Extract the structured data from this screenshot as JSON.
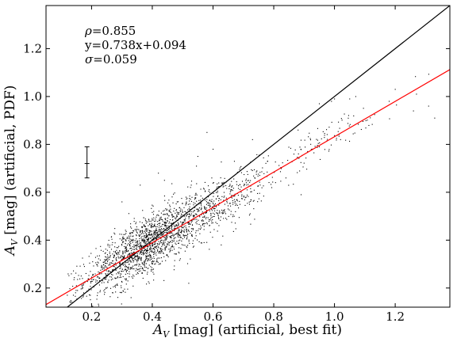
{
  "chart_data": {
    "type": "scatter",
    "title": "",
    "xlabel": "A_V [mag] (artificial, best fit)",
    "ylabel": "A_V [mag] (artificial, PDF)",
    "xlabel_parts": {
      "base": "A",
      "sub": "V",
      "rest": " [mag] (artificial, best fit)"
    },
    "ylabel_parts": {
      "base": "A",
      "sub": "V",
      "rest": " [mag] (artificial, PDF)"
    },
    "xlim": [
      0.05,
      1.38
    ],
    "ylim": [
      0.12,
      1.38
    ],
    "x_ticks": [
      0.2,
      0.4,
      0.6,
      0.8,
      1.0,
      1.2
    ],
    "y_ticks": [
      0.2,
      0.4,
      0.6,
      0.8,
      1.0,
      1.2
    ],
    "grid": false,
    "annotations": {
      "rho": {
        "symbol": "ρ",
        "text": "=0.855"
      },
      "fit": "y=0.738x+0.094",
      "sigma": {
        "symbol": "σ",
        "text": "=0.059"
      }
    },
    "lines": [
      {
        "role": "one-to-one",
        "slope": 1.0,
        "intercept": 0.0,
        "color": "#000000"
      },
      {
        "role": "linear-fit",
        "slope": 0.738,
        "intercept": 0.094,
        "color": "#ff0000"
      }
    ],
    "error_bar": {
      "x": 0.185,
      "y_low": 0.66,
      "y_high": 0.79,
      "y_center": 0.72
    },
    "scatter_clusters": [
      {
        "x_mean": 0.38,
        "x_sd": 0.1,
        "slope": 0.74,
        "intercept": 0.1,
        "y_sd": 0.06,
        "n": 1600
      },
      {
        "x_mean": 0.62,
        "x_sd": 0.08,
        "slope": 0.74,
        "intercept": 0.09,
        "y_sd": 0.06,
        "n": 400
      },
      {
        "x_mean": 0.95,
        "x_sd": 0.13,
        "slope": 0.74,
        "intercept": 0.1,
        "y_sd": 0.04,
        "n": 110
      }
    ],
    "scatter_points_extra": [
      [
        0.13,
        0.14
      ],
      [
        0.14,
        0.17
      ],
      [
        0.15,
        0.21
      ],
      [
        0.17,
        0.24
      ],
      [
        0.12,
        0.17
      ],
      [
        0.58,
        0.85
      ],
      [
        0.6,
        0.78
      ],
      [
        0.55,
        0.75
      ],
      [
        0.73,
        0.82
      ],
      [
        0.88,
        0.86
      ],
      [
        0.95,
        0.97
      ],
      [
        0.99,
        0.98
      ],
      [
        1.0,
        0.99
      ],
      [
        1.05,
        0.99
      ],
      [
        1.07,
        1.0
      ],
      [
        1.18,
        0.98
      ],
      [
        1.2,
        1.03
      ],
      [
        1.27,
        1.01
      ],
      [
        1.31,
        0.96
      ],
      [
        1.33,
        0.91
      ],
      [
        1.26,
        0.94
      ],
      [
        0.33,
        0.16
      ],
      [
        0.27,
        0.18
      ],
      [
        0.39,
        0.22
      ],
      [
        0.52,
        0.22
      ],
      [
        0.3,
        0.56
      ],
      [
        0.36,
        0.63
      ],
      [
        0.42,
        0.68
      ],
      [
        0.44,
        0.65
      ],
      [
        0.84,
        0.66
      ],
      [
        0.89,
        0.59
      ],
      [
        0.95,
        0.79
      ],
      [
        1.02,
        0.82
      ],
      [
        0.78,
        0.73
      ],
      [
        0.72,
        0.55
      ]
    ]
  }
}
